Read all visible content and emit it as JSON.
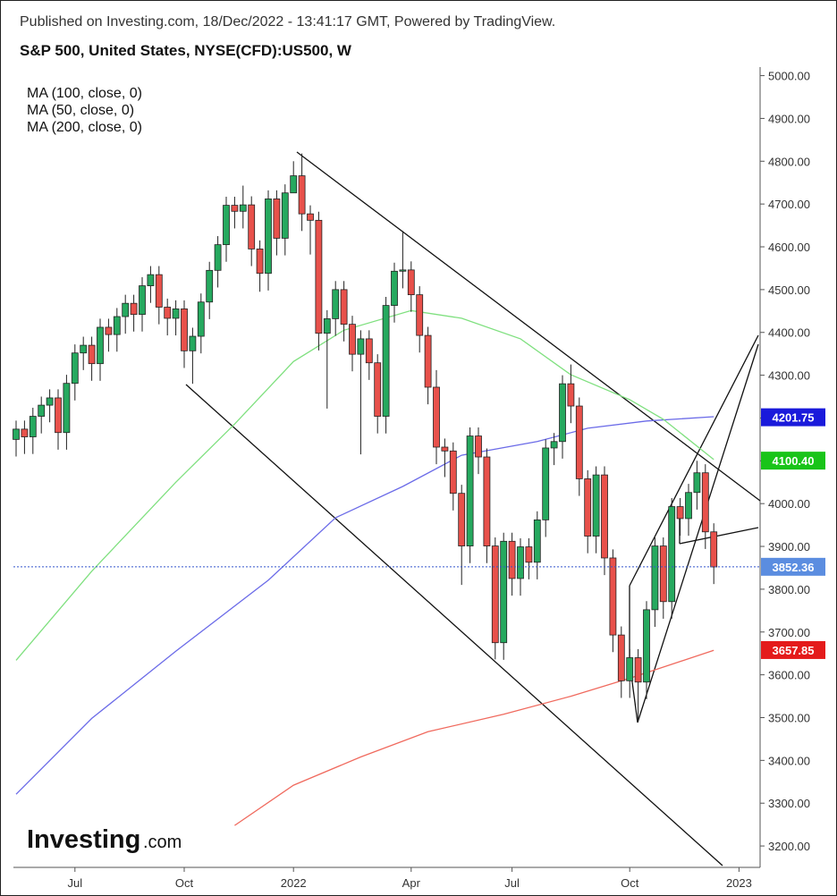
{
  "chart_data": {
    "type": "candlestick",
    "header": "Published on Investing.com, 18/Dec/2022 - 13:41:17 GMT, Powered by TradingView.",
    "title": "S&P 500, United States, NYSE(CFD):US500, W",
    "logo": "Investing",
    "logo_suffix": ".com",
    "up_color": "#26a95f",
    "down_color": "#e8514b",
    "open": [
      4150,
      4174,
      4156,
      4204,
      4230,
      4247,
      4166,
      4281,
      4352,
      4370,
      4327,
      4412,
      4395,
      4437,
      4468,
      4442,
      4509,
      4535,
      4459,
      4433,
      4455,
      4357,
      4391,
      4471,
      4545,
      4605,
      4697,
      4683,
      4698,
      4595,
      4538,
      4712,
      4620,
      4726,
      4766,
      4677,
      4662,
      4398,
      4432,
      4500,
      4419,
      4349,
      4385,
      4329,
      4204,
      4463,
      4543,
      4546,
      4488,
      4393,
      4272,
      4132,
      4123,
      4024,
      3901,
      4158,
      4109,
      3901,
      3675,
      3912,
      3825,
      3899,
      3863,
      3962,
      4130,
      4145,
      4280,
      4228,
      4058,
      3924,
      4067,
      3873,
      3693,
      3586,
      3640,
      3583,
      3752,
      3901,
      3771,
      3993,
      3965,
      4026,
      4072,
      3934
    ],
    "high": [
      4194,
      4194,
      4224,
      4250,
      4267,
      4267,
      4301,
      4372,
      4390,
      4390,
      4432,
      4432,
      4457,
      4488,
      4488,
      4529,
      4555,
      4555,
      4479,
      4475,
      4475,
      4411,
      4491,
      4565,
      4625,
      4717,
      4717,
      4743,
      4718,
      4615,
      4732,
      4732,
      4746,
      4800,
      4818,
      4697,
      4682,
      4452,
      4520,
      4520,
      4439,
      4405,
      4405,
      4349,
      4483,
      4563,
      4637,
      4566,
      4508,
      4413,
      4312,
      4152,
      4143,
      4044,
      4178,
      4178,
      4129,
      3921,
      3932,
      3932,
      3919,
      3919,
      3982,
      4150,
      4165,
      4300,
      4325,
      4248,
      4078,
      4087,
      4087,
      3893,
      3713,
      3660,
      3660,
      3772,
      3921,
      3921,
      4013,
      4013,
      4046,
      4100,
      4092,
      3954
    ],
    "low": [
      4110,
      4116,
      4116,
      4164,
      4190,
      4126,
      4126,
      4241,
      4312,
      4287,
      4287,
      4355,
      4355,
      4397,
      4402,
      4402,
      4469,
      4419,
      4393,
      4393,
      4317,
      4280,
      4351,
      4431,
      4505,
      4565,
      4643,
      4643,
      4555,
      4495,
      4498,
      4580,
      4580,
      4726,
      4637,
      4582,
      4358,
      4222,
      4392,
      4379,
      4309,
      4115,
      4289,
      4164,
      4164,
      4423,
      4503,
      4448,
      4353,
      4232,
      4092,
      4062,
      3984,
      3810,
      3861,
      4069,
      3861,
      3636,
      3635,
      3785,
      3785,
      3823,
      3823,
      3922,
      4090,
      4105,
      4188,
      4018,
      3884,
      3884,
      3833,
      3653,
      3546,
      3546,
      3491,
      3543,
      3712,
      3731,
      3731,
      3925,
      3925,
      3986,
      3894,
      3812
    ],
    "close": [
      4174,
      4156,
      4204,
      4230,
      4247,
      4166,
      4281,
      4352,
      4370,
      4327,
      4412,
      4395,
      4437,
      4468,
      4442,
      4509,
      4535,
      4459,
      4433,
      4455,
      4357,
      4391,
      4471,
      4545,
      4605,
      4697,
      4683,
      4698,
      4595,
      4538,
      4712,
      4620,
      4726,
      4766,
      4677,
      4662,
      4398,
      4432,
      4500,
      4419,
      4349,
      4385,
      4329,
      4204,
      4463,
      4543,
      4546,
      4488,
      4393,
      4272,
      4132,
      4123,
      4024,
      3901,
      4158,
      4109,
      3901,
      3675,
      3912,
      3825,
      3899,
      3863,
      3962,
      4130,
      4145,
      4280,
      4228,
      4058,
      3924,
      4067,
      3873,
      3693,
      3586,
      3640,
      3583,
      3752,
      3901,
      3771,
      3993,
      3965,
      4026,
      4072,
      3934,
      3852
    ],
    "series": [
      {
        "name": "MA (100, close, 0)",
        "color": "#6b6be8",
        "x": [
          0,
          9,
          19,
          30,
          38,
          46,
          53,
          62,
          68,
          75,
          83
        ],
        "values": [
          3321,
          3498,
          3655,
          3821,
          3967,
          4040,
          4113,
          4145,
          4176,
          4193,
          4203
        ]
      },
      {
        "name": "MA (50, close, 0)",
        "color": "#7fe07f",
        "x": [
          0,
          9,
          19,
          26,
          33,
          39,
          47,
          53,
          60,
          66,
          73,
          77,
          83
        ],
        "values": [
          3634,
          3842,
          4050,
          4186,
          4332,
          4405,
          4451,
          4433,
          4385,
          4301,
          4243,
          4197,
          4103
        ]
      },
      {
        "name": "MA (200, close, 0)",
        "color": "#f06a5e",
        "x": [
          26,
          33,
          41,
          49,
          58,
          66,
          73,
          83
        ],
        "values": [
          3248,
          3342,
          3408,
          3467,
          3508,
          3550,
          3592,
          3657
        ]
      }
    ],
    "price_labels": [
      {
        "value": 4201.75,
        "label": "4201.75",
        "color": "#1a1adb"
      },
      {
        "value": 4100.4,
        "label": "4100.40",
        "color": "#19c419"
      },
      {
        "value": 3852.36,
        "label": "3852.36",
        "color": "#5b8de0"
      },
      {
        "value": 3657.85,
        "label": "3657.85",
        "color": "#e41b1b"
      }
    ],
    "last_price": 3852.36,
    "ylim": [
      3150,
      5020
    ],
    "yticks": [
      {
        "value": 3200,
        "label": "3200.00"
      },
      {
        "value": 3300,
        "label": "3300.00"
      },
      {
        "value": 3400,
        "label": "3400.00"
      },
      {
        "value": 3500,
        "label": "3500.00"
      },
      {
        "value": 3600,
        "label": "3600.00"
      },
      {
        "value": 3700,
        "label": "3700.00"
      },
      {
        "value": 3800,
        "label": "3800.00"
      },
      {
        "value": 3900,
        "label": "3900.00"
      },
      {
        "value": 4000,
        "label": "4000.00"
      },
      {
        "value": 4100,
        "label": "4100.00"
      },
      {
        "value": 4200,
        "label": "4200.00"
      },
      {
        "value": 4300,
        "label": "4300.00"
      },
      {
        "value": 4400,
        "label": "4400.00"
      },
      {
        "value": 4500,
        "label": "4500.00"
      },
      {
        "value": 4600,
        "label": "4600.00"
      },
      {
        "value": 4700,
        "label": "4700.00"
      },
      {
        "value": 4800,
        "label": "4800.00"
      },
      {
        "value": 4900,
        "label": "4900.00"
      },
      {
        "value": 5000,
        "label": "5000.00"
      }
    ],
    "xticks": [
      {
        "value": 7,
        "label": "Jul"
      },
      {
        "value": 20,
        "label": "Oct"
      },
      {
        "value": 33,
        "label": "2022"
      },
      {
        "value": 47,
        "label": "Apr"
      },
      {
        "value": 59,
        "label": "Jul"
      },
      {
        "value": 73,
        "label": "Oct"
      },
      {
        "value": 86,
        "label": "2023"
      }
    ]
  }
}
